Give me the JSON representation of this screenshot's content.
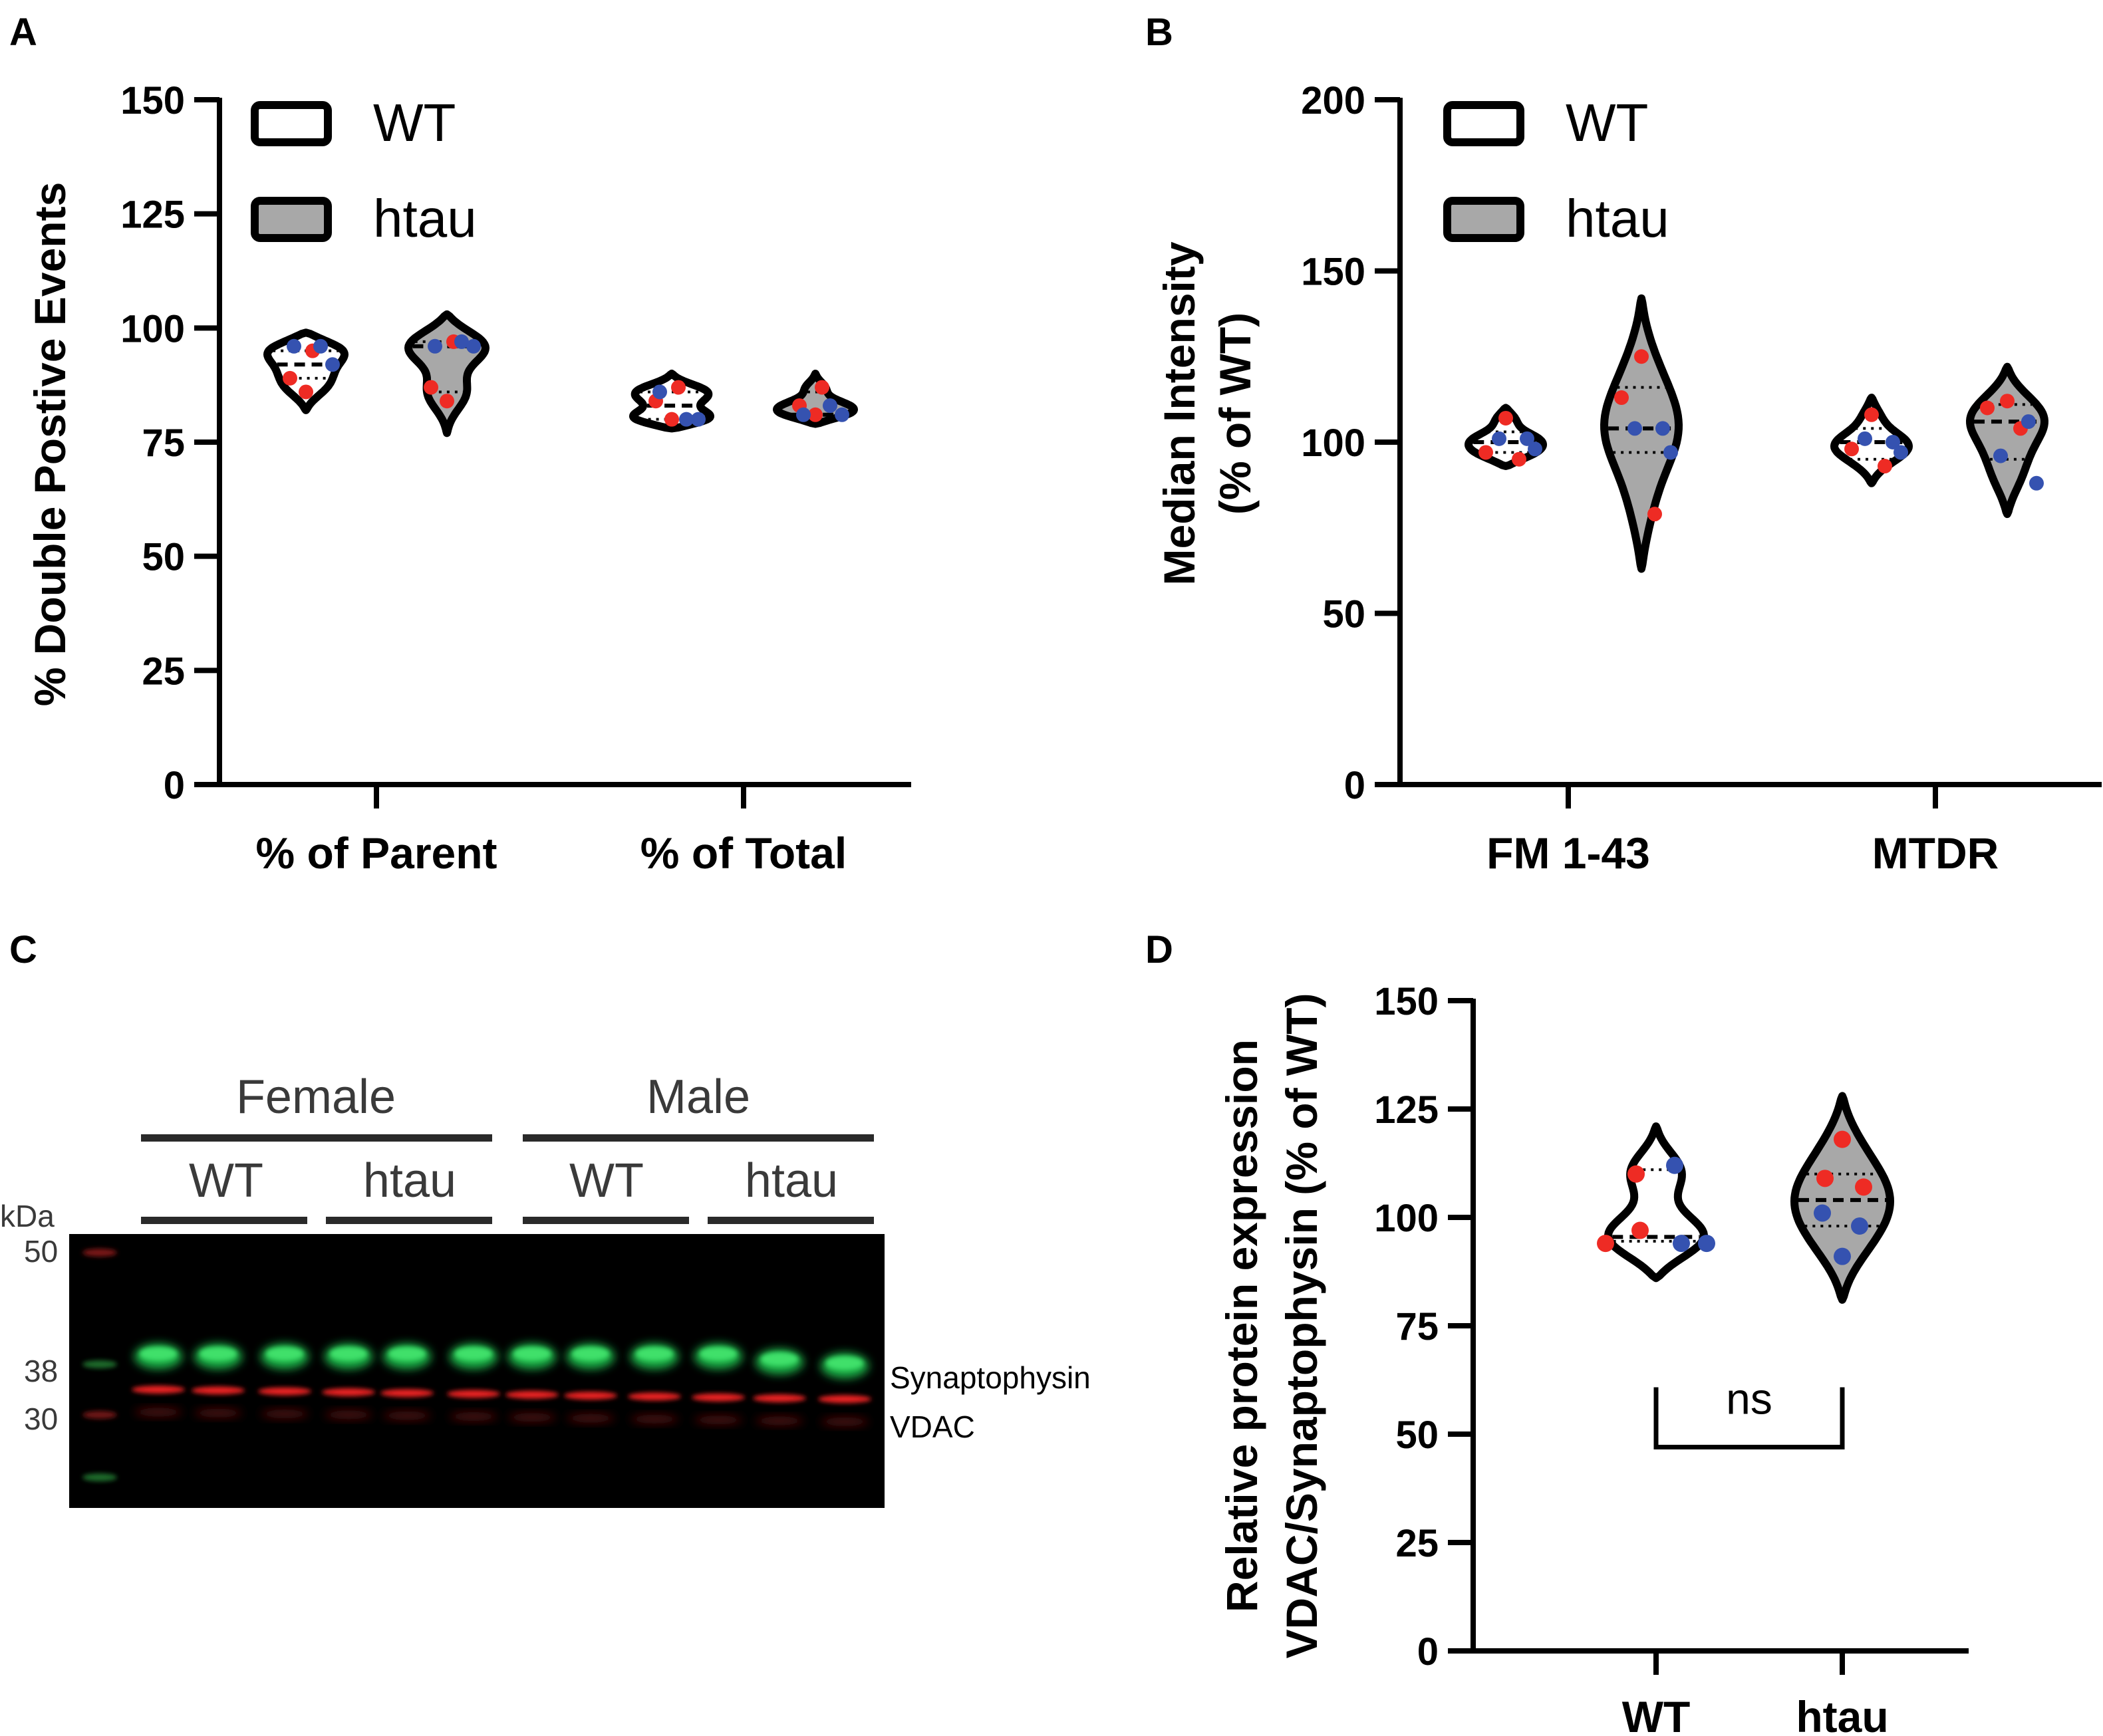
{
  "colors": {
    "wt_fill": "#ffffff",
    "htau_fill": "#a8a8a8",
    "female_dot": "#ee2b24",
    "male_dot": "#3552b0",
    "outline": "#000000"
  },
  "panels": {
    "a": "A",
    "b": "B",
    "c": "C",
    "d": "D"
  },
  "chart_data": [
    {
      "panel": "A",
      "type": "violin",
      "ylabel": "% Double Postive Events",
      "ylim": [
        0,
        150
      ],
      "yticks": [
        "0",
        "25",
        "50",
        "75",
        "100",
        "125",
        "150"
      ],
      "categories": [
        "% of Parent",
        "% of Total"
      ],
      "legend": [
        "WT",
        "htau"
      ],
      "series": [
        {
          "name": "WT",
          "groups": [
            {
              "category": "% of Parent",
              "range": [
                82,
                99
              ],
              "median": 92,
              "q1": 89,
              "q3": 95,
              "female": [
                95,
                89,
                86
              ],
              "male": [
                96,
                96,
                92
              ]
            },
            {
              "category": "% of Total",
              "range": [
                78,
                90
              ],
              "median": 83,
              "q1": 80,
              "q3": 86,
              "female": [
                87,
                84,
                80
              ],
              "male": [
                86,
                80,
                80
              ]
            }
          ]
        },
        {
          "name": "htau",
          "groups": [
            {
              "category": "% of Parent",
              "range": [
                77,
                103
              ],
              "median": 96,
              "q1": 86,
              "q3": 97,
              "female": [
                97,
                87,
                84
              ],
              "male": [
                96,
                97,
                96
              ]
            },
            {
              "category": "% of Total",
              "range": [
                79,
                90
              ],
              "median": 81,
              "q1": 80,
              "q3": 86,
              "female": [
                87,
                83,
                81
              ],
              "male": [
                81,
                83,
                81
              ]
            }
          ]
        }
      ]
    },
    {
      "panel": "B",
      "type": "violin",
      "ylabel": [
        "Median Intensity",
        "(% of WT)"
      ],
      "ylim": [
        0,
        200
      ],
      "yticks": [
        "0",
        "50",
        "100",
        "150",
        "200"
      ],
      "categories": [
        "FM 1-43",
        "MTDR"
      ],
      "legend": [
        "WT",
        "htau"
      ],
      "series": [
        {
          "name": "WT",
          "groups": [
            {
              "category": "FM 1-43",
              "range": [
                93,
                110
              ],
              "median": 100,
              "q1": 97,
              "q3": 103,
              "female": [
                107,
                97,
                95
              ],
              "male": [
                101,
                101,
                98
              ]
            },
            {
              "category": "MTDR",
              "range": [
                88,
                113
              ],
              "median": 100,
              "q1": 95,
              "q3": 104,
              "female": [
                108,
                98,
                93
              ],
              "male": [
                100,
                101,
                97
              ]
            }
          ]
        },
        {
          "name": "htau",
          "groups": [
            {
              "category": "FM 1-43",
              "range": [
                63,
                142
              ],
              "median": 104,
              "q1": 97,
              "q3": 116,
              "female": [
                125,
                113,
                79
              ],
              "male": [
                104,
                104,
                97
              ]
            },
            {
              "category": "MTDR",
              "range": [
                79,
                122
              ],
              "median": 106,
              "q1": 95,
              "q3": 111,
              "female": [
                112,
                110,
                104
              ],
              "male": [
                106,
                96,
                88
              ]
            }
          ]
        }
      ]
    },
    {
      "panel": "D",
      "type": "violin",
      "ylabel": [
        "Relative protein expression",
        "VDAC/Synaptophysin (% of WT)"
      ],
      "ylim": [
        0,
        150
      ],
      "yticks": [
        "0",
        "25",
        "50",
        "75",
        "100",
        "125",
        "150"
      ],
      "categories": [
        "WT",
        "htau"
      ],
      "annotation": "ns",
      "groups": [
        {
          "category": "WT",
          "fill": "WT",
          "range": [
            86,
            121
          ],
          "median": 95.5,
          "q1": 94.5,
          "q3": 111,
          "female": [
            110,
            97,
            94
          ],
          "male": [
            112,
            94,
            94
          ]
        },
        {
          "category": "htau",
          "fill": "htau",
          "range": [
            81,
            128
          ],
          "median": 104,
          "q1": 98,
          "q3": 110,
          "female": [
            118,
            109,
            107
          ],
          "male": [
            101,
            98,
            91
          ]
        }
      ]
    }
  ],
  "blot": {
    "sexes": [
      "Female",
      "Male"
    ],
    "genotypes": [
      "WT",
      "htau",
      "WT",
      "htau"
    ],
    "kda_label": "kDa",
    "kda_marks": [
      "50",
      "38",
      "30"
    ],
    "band_labels": [
      "Synaptophysin",
      "VDAC"
    ]
  }
}
